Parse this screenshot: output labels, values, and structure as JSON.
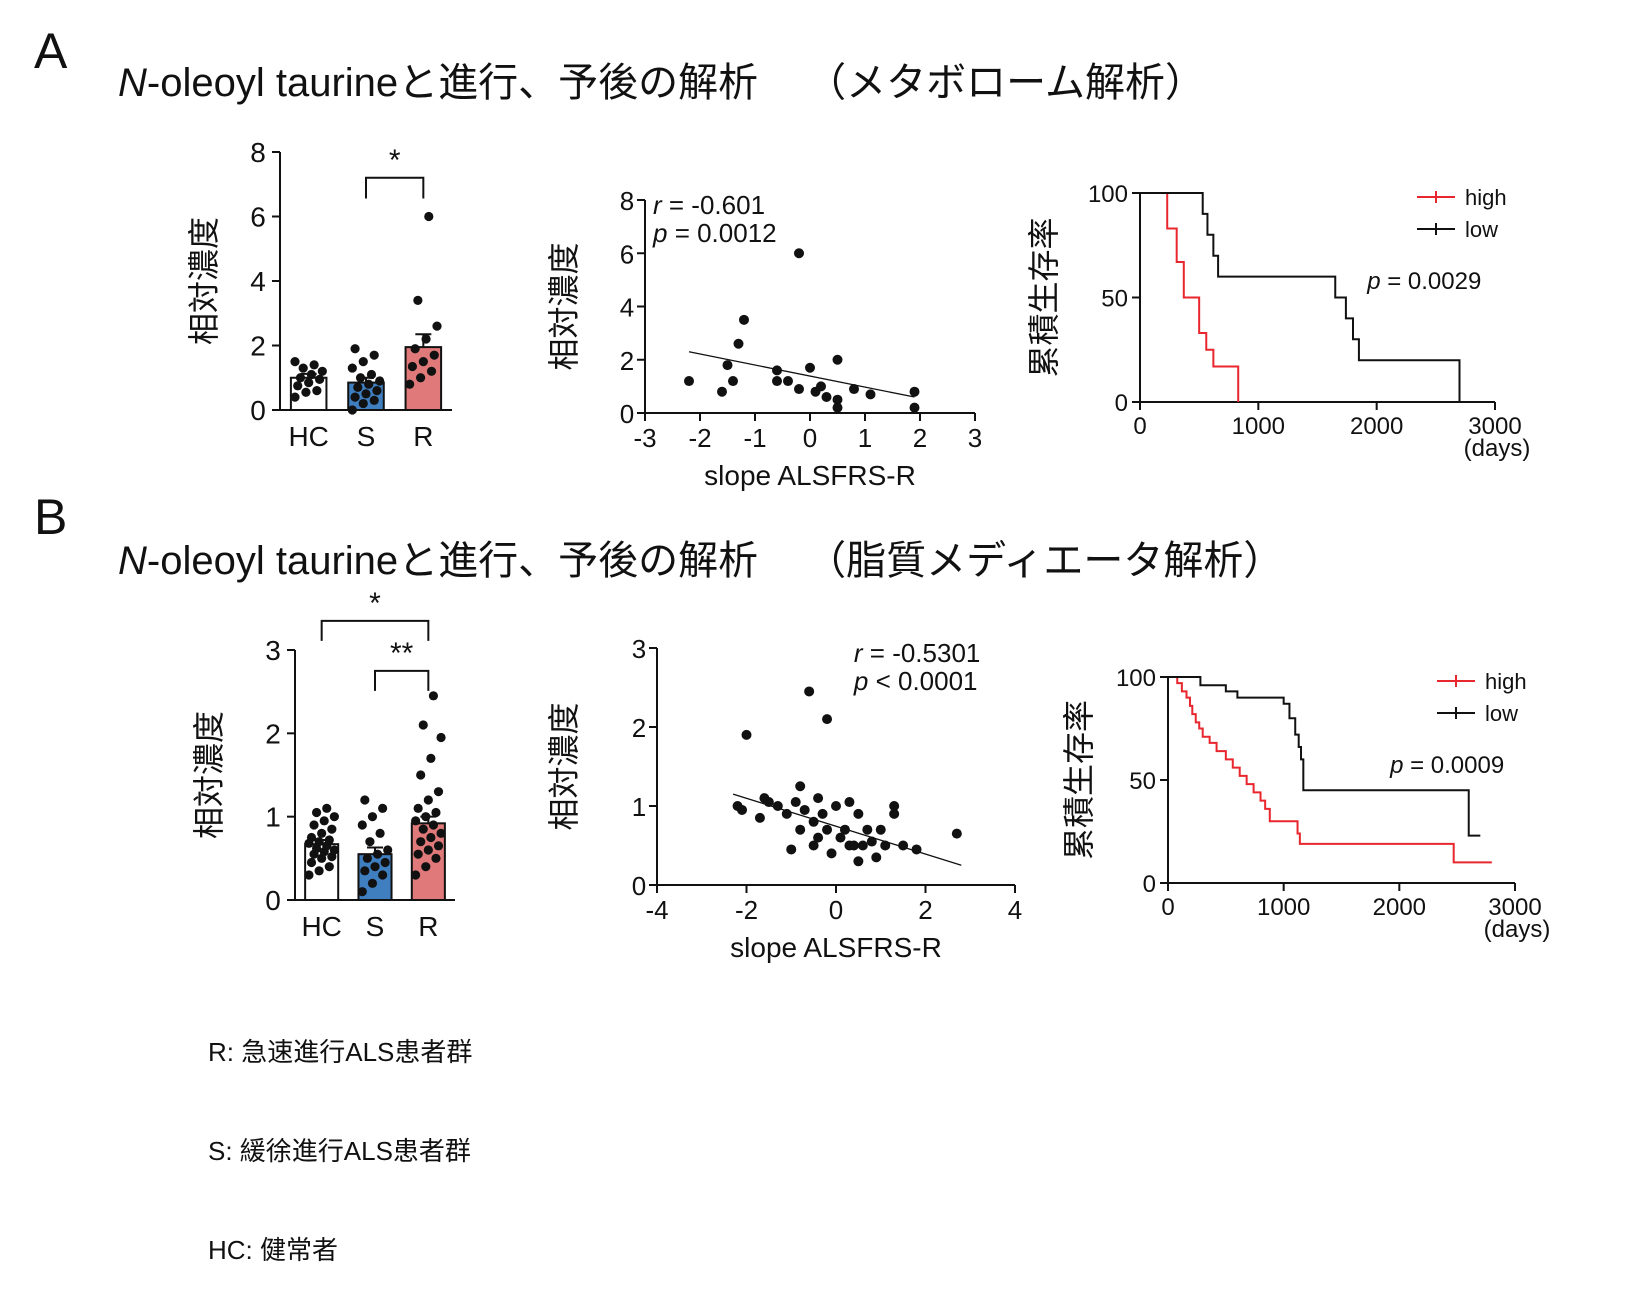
{
  "sections": [
    {
      "letter": "A",
      "title_italic": "N",
      "title_rest": "-oleoyl taurineと進行、予後の解析",
      "title_suffix": "（メタボローム解析）"
    },
    {
      "letter": "B",
      "title_italic": "N",
      "title_rest": "-oleoyl taurineと進行、予後の解析",
      "title_suffix": "（脂質メディエータ解析）"
    }
  ],
  "legend_lines": [
    "R: 急速進行ALS患者群",
    "S: 緩徐進行ALS患者群",
    "HC: 健常者"
  ],
  "colors": {
    "hc": "#ffffff",
    "s": "#3f7fc0",
    "r": "#e07a7a",
    "high": "#e8262d",
    "low": "#111111"
  },
  "chart_data": [
    {
      "id": "A-bar",
      "type": "bar",
      "ylabel": "相対濃度",
      "categories": [
        "HC",
        "S",
        "R"
      ],
      "values": [
        1.0,
        0.85,
        1.95
      ],
      "errors": [
        0.12,
        0.15,
        0.4
      ],
      "ylim": [
        0,
        8
      ],
      "yticks": [
        0,
        2,
        4,
        6,
        8
      ],
      "points": [
        [
          0.4,
          0.55,
          0.6,
          0.75,
          0.85,
          0.95,
          1.0,
          1.1,
          1.2,
          1.3,
          1.4,
          1.5
        ],
        [
          0.0,
          0.2,
          0.3,
          0.4,
          0.5,
          0.6,
          0.7,
          0.8,
          0.9,
          1.0,
          1.1,
          1.3,
          1.5,
          1.7,
          1.9
        ],
        [
          0.8,
          1.0,
          1.2,
          1.35,
          1.5,
          1.7,
          1.9,
          2.2,
          2.6,
          3.4,
          6.0
        ]
      ],
      "significance": [
        {
          "from": 1,
          "to": 2,
          "label": "*",
          "y": 7.2
        }
      ]
    },
    {
      "id": "A-scatter",
      "type": "scatter",
      "ylabel": "相対濃度",
      "xlabel": "slope ALSFRS-R",
      "xlim": [
        -3,
        3
      ],
      "ylim": [
        0,
        8
      ],
      "xticks": [
        -3,
        -2,
        -1,
        0,
        1,
        2,
        3
      ],
      "yticks": [
        0,
        2,
        4,
        6,
        8
      ],
      "annotation": [
        "r = -0.601",
        "p = 0.0012"
      ],
      "points": [
        [
          -2.2,
          1.2
        ],
        [
          -1.6,
          0.8
        ],
        [
          -1.5,
          1.8
        ],
        [
          -1.4,
          1.2
        ],
        [
          -1.3,
          2.6
        ],
        [
          -1.2,
          3.5
        ],
        [
          -0.6,
          1.6
        ],
        [
          -0.6,
          1.2
        ],
        [
          -0.4,
          1.2
        ],
        [
          -0.2,
          6.0
        ],
        [
          -0.2,
          0.9
        ],
        [
          0.0,
          1.7
        ],
        [
          0.1,
          0.8
        ],
        [
          0.2,
          1.0
        ],
        [
          0.3,
          0.6
        ],
        [
          0.5,
          0.5
        ],
        [
          0.5,
          0.2
        ],
        [
          0.5,
          2.0
        ],
        [
          0.8,
          0.9
        ],
        [
          1.1,
          0.7
        ],
        [
          1.9,
          0.8
        ],
        [
          1.9,
          0.2
        ]
      ],
      "trend": [
        [
          -2.2,
          2.3
        ],
        [
          1.9,
          0.6
        ]
      ]
    },
    {
      "id": "A-survival",
      "type": "line",
      "ylabel": "累積生存率",
      "xlabel_unit": "(days)",
      "xlim": [
        0,
        3000
      ],
      "ylim": [
        0,
        100
      ],
      "xticks": [
        0,
        1000,
        2000,
        3000
      ],
      "yticks": [
        0,
        50,
        100
      ],
      "annotation": "p = 0.0029",
      "series": [
        {
          "name": "high",
          "color": "#e8262d",
          "steps": [
            [
              0,
              100
            ],
            [
              230,
              100
            ],
            [
              230,
              83
            ],
            [
              310,
              83
            ],
            [
              310,
              67
            ],
            [
              370,
              67
            ],
            [
              370,
              50
            ],
            [
              500,
              50
            ],
            [
              500,
              33
            ],
            [
              560,
              33
            ],
            [
              560,
              25
            ],
            [
              620,
              25
            ],
            [
              620,
              17
            ],
            [
              830,
              17
            ],
            [
              830,
              0
            ]
          ]
        },
        {
          "name": "low",
          "color": "#111111",
          "steps": [
            [
              0,
              100
            ],
            [
              530,
              100
            ],
            [
              530,
              90
            ],
            [
              570,
              90
            ],
            [
              570,
              80
            ],
            [
              620,
              80
            ],
            [
              620,
              70
            ],
            [
              660,
              70
            ],
            [
              660,
              60
            ],
            [
              1650,
              60
            ],
            [
              1650,
              50
            ],
            [
              1740,
              50
            ],
            [
              1740,
              40
            ],
            [
              1800,
              40
            ],
            [
              1800,
              30
            ],
            [
              1850,
              30
            ],
            [
              1850,
              20
            ],
            [
              2700,
              20
            ],
            [
              2700,
              0
            ]
          ]
        }
      ]
    },
    {
      "id": "B-bar",
      "type": "bar",
      "ylabel": "相対濃度",
      "categories": [
        "HC",
        "S",
        "R"
      ],
      "values": [
        0.67,
        0.55,
        0.92
      ],
      "errors": [
        0.05,
        0.08,
        0.08
      ],
      "ylim": [
        0,
        3
      ],
      "yticks": [
        0,
        1,
        2,
        3
      ],
      "points": [
        [
          0.3,
          0.35,
          0.4,
          0.45,
          0.5,
          0.52,
          0.55,
          0.58,
          0.6,
          0.62,
          0.65,
          0.68,
          0.7,
          0.72,
          0.75,
          0.8,
          0.85,
          0.9,
          0.95,
          1.0,
          1.05,
          1.1
        ],
        [
          0.1,
          0.2,
          0.3,
          0.35,
          0.4,
          0.45,
          0.5,
          0.55,
          0.6,
          0.7,
          0.8,
          0.9,
          1.0,
          1.1,
          1.2
        ],
        [
          0.3,
          0.4,
          0.5,
          0.55,
          0.6,
          0.65,
          0.7,
          0.75,
          0.8,
          0.85,
          0.9,
          0.95,
          1.0,
          1.05,
          1.1,
          1.2,
          1.3,
          1.5,
          1.7,
          1.95,
          2.1,
          2.45
        ]
      ],
      "significance": [
        {
          "from": 0,
          "to": 2,
          "label": "*",
          "y": 3.35
        },
        {
          "from": 1,
          "to": 2,
          "label": "**",
          "y": 2.75
        }
      ]
    },
    {
      "id": "B-scatter",
      "type": "scatter",
      "ylabel": "相対濃度",
      "xlabel": "slope ALSFRS-R",
      "xlim": [
        -4,
        4
      ],
      "ylim": [
        0,
        3
      ],
      "xticks": [
        -4,
        -2,
        0,
        2,
        4
      ],
      "yticks": [
        0,
        1,
        2,
        3
      ],
      "annotation": [
        "r = -0.5301",
        "p < 0.0001"
      ],
      "points": [
        [
          -2.2,
          1.0
        ],
        [
          -2.1,
          0.95
        ],
        [
          -2.0,
          1.9
        ],
        [
          -1.7,
          0.85
        ],
        [
          -1.6,
          1.1
        ],
        [
          -1.5,
          1.05
        ],
        [
          -1.3,
          1.0
        ],
        [
          -1.1,
          0.9
        ],
        [
          -1.0,
          0.45
        ],
        [
          -0.9,
          1.05
        ],
        [
          -0.8,
          0.7
        ],
        [
          -0.8,
          1.25
        ],
        [
          -0.7,
          0.95
        ],
        [
          -0.6,
          2.45
        ],
        [
          -0.5,
          0.5
        ],
        [
          -0.5,
          0.8
        ],
        [
          -0.4,
          1.1
        ],
        [
          -0.4,
          0.6
        ],
        [
          -0.3,
          0.9
        ],
        [
          -0.2,
          0.7
        ],
        [
          -0.2,
          2.1
        ],
        [
          -0.1,
          0.4
        ],
        [
          0.0,
          1.0
        ],
        [
          0.1,
          0.6
        ],
        [
          0.2,
          0.7
        ],
        [
          0.3,
          1.05
        ],
        [
          0.3,
          0.5
        ],
        [
          0.4,
          0.5
        ],
        [
          0.5,
          0.3
        ],
        [
          0.5,
          0.9
        ],
        [
          0.6,
          0.5
        ],
        [
          0.7,
          0.7
        ],
        [
          0.8,
          0.55
        ],
        [
          0.9,
          0.35
        ],
        [
          1.0,
          0.7
        ],
        [
          1.1,
          0.5
        ],
        [
          1.3,
          1.0
        ],
        [
          1.3,
          0.9
        ],
        [
          1.5,
          0.5
        ],
        [
          1.8,
          0.45
        ],
        [
          2.7,
          0.65
        ]
      ],
      "trend": [
        [
          -2.3,
          1.15
        ],
        [
          2.8,
          0.25
        ]
      ]
    },
    {
      "id": "B-survival",
      "type": "line",
      "ylabel": "累積生存率",
      "xlabel_unit": "(days)",
      "xlim": [
        0,
        3000
      ],
      "ylim": [
        0,
        100
      ],
      "xticks": [
        0,
        1000,
        2000,
        3000
      ],
      "yticks": [
        0,
        50,
        100
      ],
      "annotation": "p = 0.0009",
      "series": [
        {
          "name": "high",
          "color": "#e8262d",
          "steps": [
            [
              0,
              100
            ],
            [
              80,
              100
            ],
            [
              80,
              97
            ],
            [
              120,
              97
            ],
            [
              120,
              93
            ],
            [
              160,
              93
            ],
            [
              160,
              90
            ],
            [
              190,
              90
            ],
            [
              190,
              86
            ],
            [
              210,
              86
            ],
            [
              210,
              82
            ],
            [
              240,
              82
            ],
            [
              240,
              78
            ],
            [
              270,
              78
            ],
            [
              270,
              75
            ],
            [
              300,
              75
            ],
            [
              300,
              71
            ],
            [
              360,
              71
            ],
            [
              360,
              68
            ],
            [
              420,
              68
            ],
            [
              420,
              64
            ],
            [
              500,
              64
            ],
            [
              500,
              60
            ],
            [
              560,
              60
            ],
            [
              560,
              56
            ],
            [
              620,
              56
            ],
            [
              620,
              52
            ],
            [
              680,
              52
            ],
            [
              680,
              48
            ],
            [
              740,
              48
            ],
            [
              740,
              44
            ],
            [
              800,
              44
            ],
            [
              800,
              40
            ],
            [
              840,
              40
            ],
            [
              840,
              36
            ],
            [
              880,
              36
            ],
            [
              880,
              30
            ],
            [
              1120,
              30
            ],
            [
              1120,
              24
            ],
            [
              1140,
              24
            ],
            [
              1140,
              19
            ],
            [
              2470,
              19
            ],
            [
              2470,
              10
            ],
            [
              2800,
              10
            ]
          ]
        },
        {
          "name": "low",
          "color": "#111111",
          "steps": [
            [
              0,
              100
            ],
            [
              280,
              100
            ],
            [
              280,
              96
            ],
            [
              500,
              96
            ],
            [
              500,
              93
            ],
            [
              600,
              93
            ],
            [
              600,
              90
            ],
            [
              1000,
              90
            ],
            [
              1000,
              87
            ],
            [
              1050,
              87
            ],
            [
              1050,
              80
            ],
            [
              1100,
              80
            ],
            [
              1100,
              72
            ],
            [
              1130,
              72
            ],
            [
              1130,
              66
            ],
            [
              1150,
              66
            ],
            [
              1150,
              60
            ],
            [
              1170,
              60
            ],
            [
              1170,
              45
            ],
            [
              2600,
              45
            ],
            [
              2600,
              23
            ],
            [
              2700,
              23
            ]
          ]
        }
      ]
    }
  ]
}
